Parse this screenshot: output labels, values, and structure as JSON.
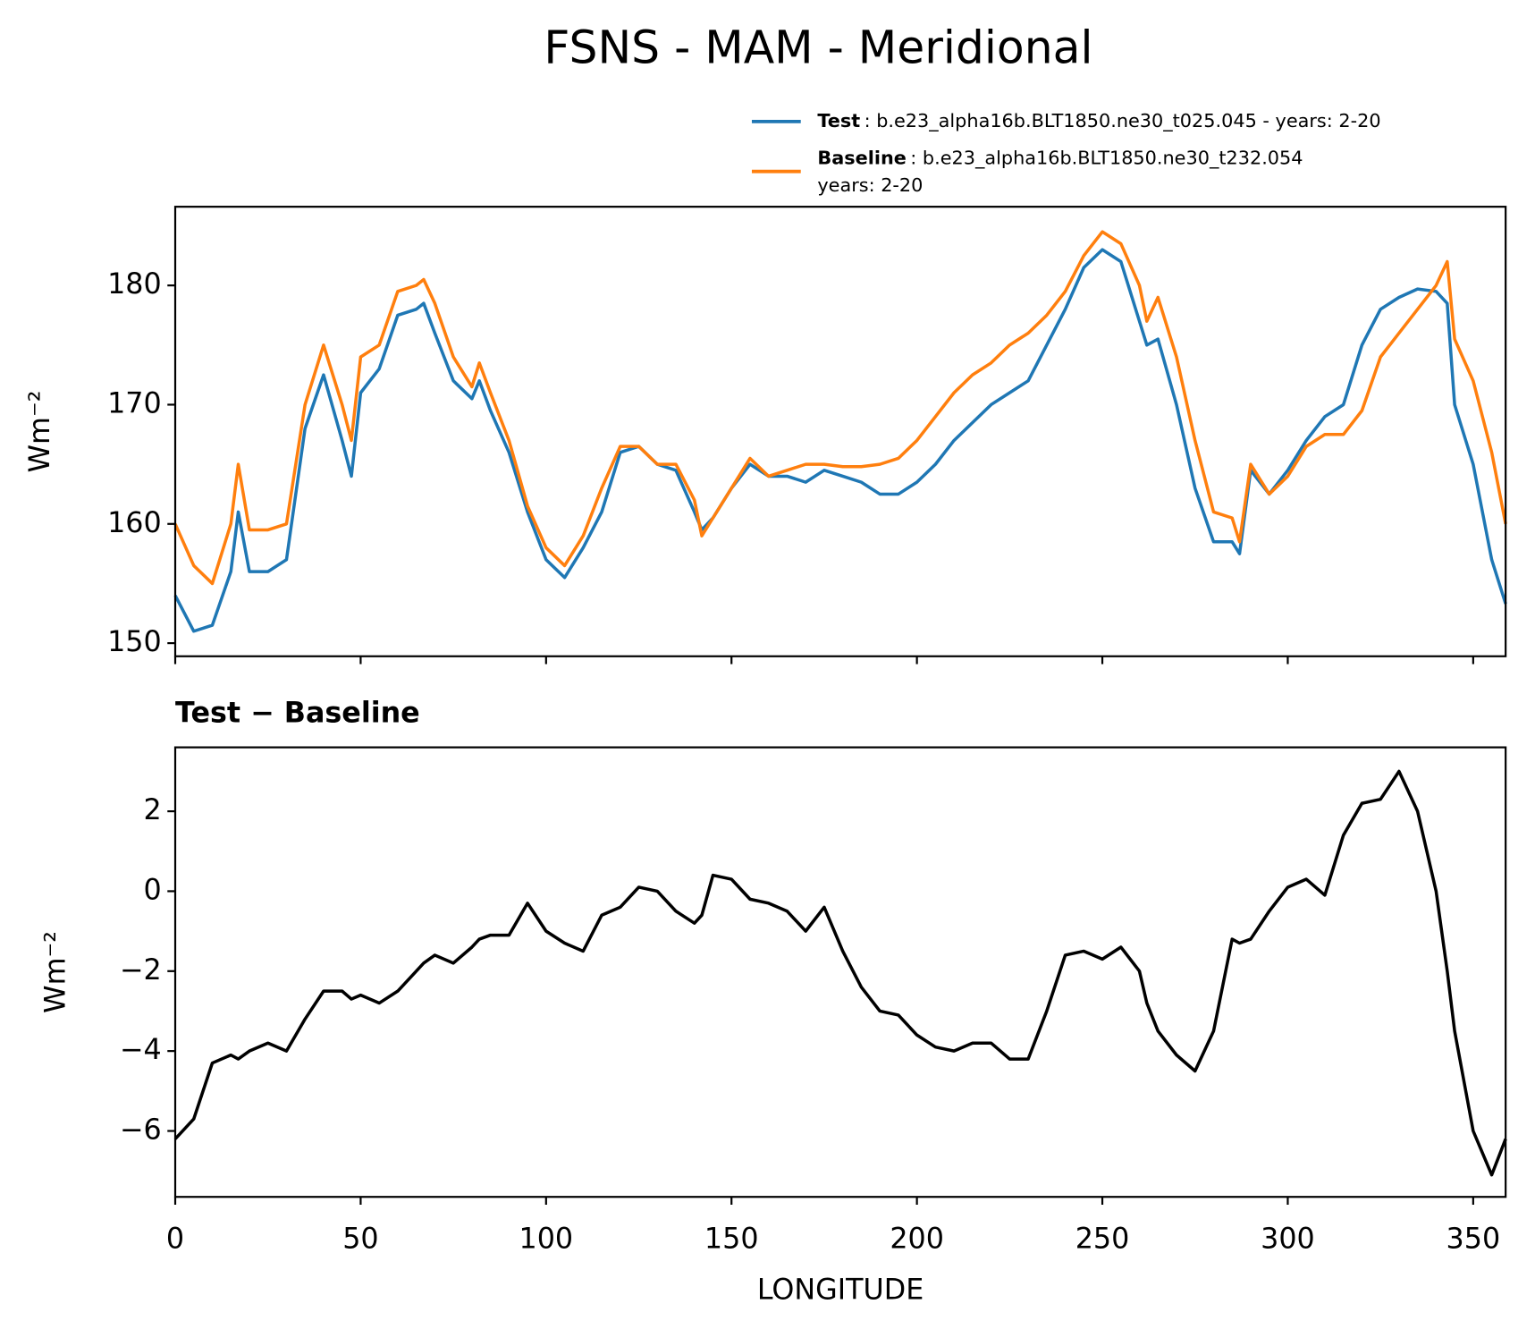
{
  "chart_data": [
    {
      "type": "line",
      "title": "FSNS - MAM - Meridional",
      "ylabel": "Wm⁻²",
      "xlim": [
        0,
        358.75
      ],
      "xticks": [
        0,
        50,
        100,
        150,
        200,
        250,
        300,
        350
      ],
      "ylim": [
        148.9,
        186.6
      ],
      "yticks": [
        150,
        160,
        170,
        180
      ],
      "x": [
        0,
        5,
        10,
        15,
        17,
        20,
        25,
        30,
        35,
        40,
        45,
        47.5,
        50,
        55,
        60,
        65,
        67,
        70,
        75,
        80,
        82,
        85,
        90,
        95,
        100,
        105,
        110,
        115,
        120,
        125,
        130,
        135,
        140,
        142,
        145,
        150,
        155,
        160,
        165,
        170,
        175,
        180,
        185,
        190,
        195,
        200,
        205,
        210,
        215,
        220,
        225,
        230,
        235,
        240,
        245,
        250,
        255,
        260,
        262,
        265,
        270,
        275,
        280,
        285,
        287,
        290,
        295,
        300,
        305,
        310,
        315,
        320,
        325,
        330,
        335,
        340,
        343,
        345,
        350,
        355,
        358.75
      ],
      "series": [
        {
          "name": "Test",
          "description": [
            ": b.e23_alpha16b.BLT1850.ne30_t025.045 - years: 2-20"
          ],
          "color": "#1f77b4",
          "values": [
            154,
            151,
            151.5,
            156,
            161,
            156,
            156,
            157,
            168,
            172.5,
            167,
            164,
            171,
            173,
            177.5,
            178,
            178.5,
            176,
            172,
            170.5,
            172,
            169.5,
            166,
            161,
            157,
            155.5,
            158,
            161,
            166,
            166.5,
            165,
            164.5,
            161,
            159.5,
            160.5,
            163,
            165,
            164,
            164,
            163.5,
            164.5,
            164,
            163.5,
            162.5,
            162.5,
            163.5,
            165,
            167,
            168.5,
            170,
            171,
            172,
            175,
            178,
            181.5,
            183,
            182,
            177,
            175,
            175.5,
            170,
            163,
            158.5,
            158.5,
            157.5,
            164.5,
            162.5,
            164.5,
            167,
            169,
            170,
            175,
            178,
            179,
            179.7,
            179.5,
            178.5,
            170,
            165,
            157,
            153.3
          ]
        },
        {
          "name": "Baseline",
          "description": [
            ": b.e23_alpha16b.BLT1850.ne30_t232.054",
            "years: 2-20"
          ],
          "color": "#ff7f0e",
          "values": [
            160,
            156.5,
            155,
            160,
            165,
            159.5,
            159.5,
            160,
            170,
            175,
            170,
            167,
            174,
            175,
            179.5,
            180,
            180.5,
            178.5,
            174,
            171.5,
            173.5,
            171,
            167,
            161.5,
            158,
            156.5,
            159,
            163,
            166.5,
            166.5,
            165,
            165,
            162,
            159,
            160.5,
            163,
            165.5,
            164,
            164.5,
            165,
            165,
            164.8,
            164.8,
            165,
            165.5,
            167,
            169,
            171,
            172.5,
            173.5,
            175,
            176,
            177.5,
            179.5,
            182.5,
            184.5,
            183.5,
            180,
            177,
            179,
            174,
            167,
            161,
            160.5,
            158.5,
            165,
            162.5,
            164,
            166.5,
            167.5,
            167.5,
            169.5,
            174,
            176,
            178,
            180,
            182,
            175.5,
            172,
            166,
            160
          ]
        }
      ]
    },
    {
      "type": "line",
      "title": "Test − Baseline",
      "ylabel": "Wm⁻²",
      "xlabel": "LONGITUDE",
      "xlim": [
        0,
        358.75
      ],
      "xticks": [
        0,
        50,
        100,
        150,
        200,
        250,
        300,
        350
      ],
      "ylim": [
        -7.65,
        3.6
      ],
      "yticks": [
        {
          "value": -6,
          "label": "−6"
        },
        {
          "value": -4,
          "label": "−4"
        },
        {
          "value": -2,
          "label": "−2"
        },
        0,
        2
      ],
      "x": [
        0,
        5,
        10,
        15,
        17,
        20,
        25,
        30,
        35,
        40,
        45,
        47.5,
        50,
        55,
        60,
        65,
        67,
        70,
        75,
        80,
        82,
        85,
        90,
        95,
        100,
        105,
        110,
        115,
        120,
        125,
        130,
        135,
        140,
        142,
        145,
        150,
        155,
        160,
        165,
        170,
        175,
        180,
        185,
        190,
        195,
        200,
        205,
        210,
        215,
        220,
        225,
        230,
        235,
        240,
        245,
        250,
        255,
        260,
        262,
        265,
        270,
        275,
        280,
        285,
        287,
        290,
        295,
        300,
        305,
        310,
        315,
        320,
        325,
        330,
        335,
        340,
        343,
        345,
        350,
        355,
        358.75
      ],
      "series": [
        {
          "color": "#000000",
          "values": [
            -6.2,
            -5.7,
            -4.3,
            -4.1,
            -4.2,
            -4.0,
            -3.8,
            -4.0,
            -3.2,
            -2.5,
            -2.5,
            -2.7,
            -2.6,
            -2.8,
            -2.5,
            -2.0,
            -1.8,
            -1.6,
            -1.8,
            -1.4,
            -1.2,
            -1.1,
            -1.1,
            -0.3,
            -1.0,
            -1.3,
            -1.5,
            -0.6,
            -0.4,
            0.1,
            0.0,
            -0.5,
            -0.8,
            -0.6,
            0.4,
            0.3,
            -0.2,
            -0.3,
            -0.5,
            -1.0,
            -0.4,
            -1.5,
            -2.4,
            -3.0,
            -3.1,
            -3.6,
            -3.9,
            -4.0,
            -3.8,
            -3.8,
            -4.2,
            -4.2,
            -3.0,
            -1.6,
            -1.5,
            -1.7,
            -1.4,
            -2.0,
            -2.8,
            -3.5,
            -4.1,
            -4.5,
            -3.5,
            -1.2,
            -1.3,
            -1.2,
            -0.5,
            0.1,
            0.3,
            -0.1,
            1.4,
            2.2,
            2.3,
            3.0,
            2.0,
            0.0,
            -2.0,
            -3.5,
            -6.0,
            -7.1,
            -6.2
          ]
        }
      ]
    }
  ]
}
